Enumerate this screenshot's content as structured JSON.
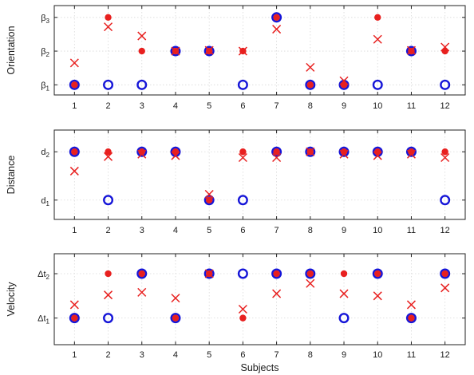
{
  "colors": {
    "marker_red": "#e8201f",
    "marker_blue": "#1515d8"
  },
  "chart_data": [
    {
      "type": "scatter",
      "ylabel": "Orientation",
      "xlabel": "",
      "x": [
        1,
        2,
        3,
        4,
        5,
        6,
        7,
        8,
        9,
        10,
        11,
        12
      ],
      "xlim": [
        0.4,
        12.6
      ],
      "ylim": [
        0.7,
        3.35
      ],
      "yticks": [
        {
          "value": 1,
          "base": "β",
          "sub": "1"
        },
        {
          "value": 2,
          "base": "β",
          "sub": "2"
        },
        {
          "value": 3,
          "base": "β",
          "sub": "3"
        }
      ],
      "grid": true,
      "series": [
        {
          "marker": "open-circle",
          "color": "#1515d8",
          "values": [
            1,
            1,
            1,
            2,
            2,
            1,
            3,
            1,
            1,
            1,
            2,
            1
          ]
        },
        {
          "marker": "filled-dot",
          "color": "#e8201f",
          "values": [
            1,
            3,
            2,
            2,
            2,
            2,
            3,
            1,
            1,
            3,
            2,
            2
          ]
        },
        {
          "marker": "cross",
          "color": "#e8201f",
          "values": [
            1.65,
            2.72,
            2.45,
            2.0,
            2.02,
            2.0,
            2.65,
            1.52,
            1.12,
            2.35,
            2.02,
            2.12
          ]
        }
      ]
    },
    {
      "type": "scatter",
      "ylabel": "Distance",
      "xlabel": "",
      "x": [
        1,
        2,
        3,
        4,
        5,
        6,
        7,
        8,
        9,
        10,
        11,
        12
      ],
      "xlim": [
        0.4,
        12.6
      ],
      "ylim": [
        0.6,
        2.45
      ],
      "yticks": [
        {
          "value": 1,
          "base": "d",
          "sub": "1"
        },
        {
          "value": 2,
          "base": "d",
          "sub": "2"
        }
      ],
      "grid": true,
      "series": [
        {
          "marker": "open-circle",
          "color": "#1515d8",
          "values": [
            2,
            1,
            2,
            2,
            1,
            1,
            2,
            2,
            2,
            2,
            2,
            1
          ]
        },
        {
          "marker": "filled-dot",
          "color": "#e8201f",
          "values": [
            2,
            2,
            2,
            2,
            1,
            2,
            2,
            2,
            2,
            2,
            2,
            2
          ]
        },
        {
          "marker": "cross",
          "color": "#e8201f",
          "values": [
            1.6,
            1.9,
            1.95,
            1.92,
            1.12,
            1.88,
            1.88,
            2.0,
            1.95,
            1.92,
            1.95,
            1.88
          ]
        }
      ]
    },
    {
      "type": "scatter",
      "ylabel": "Velocity",
      "xlabel": "Subjects",
      "x": [
        1,
        2,
        3,
        4,
        5,
        6,
        7,
        8,
        9,
        10,
        11,
        12
      ],
      "xticklabels": [
        "1",
        "2",
        "3",
        "4",
        "5",
        "6",
        "7",
        "8",
        "9",
        "10",
        "11",
        "12"
      ],
      "xlim": [
        0.4,
        12.6
      ],
      "ylim": [
        0.4,
        2.45
      ],
      "yticks": [
        {
          "value": 1,
          "base": "Δt",
          "sub": "1"
        },
        {
          "value": 2,
          "base": "Δt",
          "sub": "2"
        }
      ],
      "grid": true,
      "series": [
        {
          "marker": "open-circle",
          "color": "#1515d8",
          "values": [
            1,
            1,
            2,
            1,
            2,
            2,
            2,
            2,
            1,
            2,
            1,
            2
          ]
        },
        {
          "marker": "filled-dot",
          "color": "#e8201f",
          "values": [
            1,
            2,
            2,
            1,
            2,
            1,
            2,
            2,
            2,
            2,
            1,
            2
          ]
        },
        {
          "marker": "cross",
          "color": "#e8201f",
          "values": [
            1.3,
            1.52,
            1.58,
            1.45,
            2.0,
            1.2,
            1.55,
            1.78,
            1.55,
            1.5,
            1.3,
            1.68
          ]
        }
      ]
    }
  ]
}
